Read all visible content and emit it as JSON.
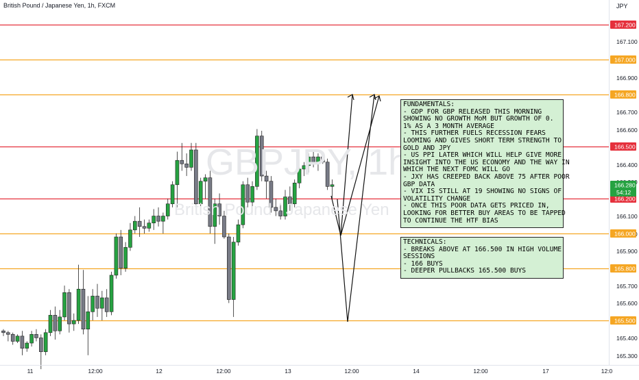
{
  "chart_data": {
    "type": "candlestick",
    "title": "British Pound / Japanese Yen, 1h, FXCM",
    "watermark": {
      "symbol": "GBPJPY, 1h",
      "name": "British Pound / Japanese Yen"
    },
    "y_unit": "JPY",
    "ylim": [
      165.26,
      167.33
    ],
    "y_ticks": [
      "167.100",
      "166.900",
      "166.700",
      "166.600",
      "166.400",
      "166.300",
      "166.100",
      "166.000",
      "165.900",
      "165.700",
      "165.600",
      "165.400",
      "165.300"
    ],
    "x_ticks": [
      "11",
      "12:00",
      "12",
      "12:00",
      "13",
      "12:00",
      "14",
      "12:00",
      "17",
      "12:0"
    ],
    "hlines": [
      {
        "value": 167.2,
        "label": "167.200",
        "color": "#e5303c"
      },
      {
        "value": 167.0,
        "label": "167.000",
        "color": "#f5a623"
      },
      {
        "value": 166.8,
        "label": "166.800",
        "color": "#f5a623"
      },
      {
        "value": 166.5,
        "label": "166.500",
        "color": "#e5303c"
      },
      {
        "value": 166.2,
        "label": "166.200",
        "color": "#e5303c"
      },
      {
        "value": 166.0,
        "label": "166.000",
        "color": "#f5a623"
      },
      {
        "value": 165.8,
        "label": "165.800",
        "color": "#f5a623"
      },
      {
        "value": 165.5,
        "label": "165.500",
        "color": "#f5a623"
      }
    ],
    "current_price": {
      "value": 166.28,
      "label": "166.280",
      "countdown": "54:12",
      "color": "#26a241"
    },
    "candles": [
      [
        165.44,
        165.45,
        165.41,
        165.43
      ],
      [
        165.43,
        165.44,
        165.38,
        165.42
      ],
      [
        165.42,
        165.43,
        165.36,
        165.38
      ],
      [
        165.38,
        165.42,
        165.37,
        165.41
      ],
      [
        165.41,
        165.44,
        165.3,
        165.34
      ],
      [
        165.34,
        165.38,
        165.32,
        165.37
      ],
      [
        165.37,
        165.44,
        165.35,
        165.42
      ],
      [
        165.42,
        165.45,
        165.38,
        165.4
      ],
      [
        165.4,
        165.42,
        165.22,
        165.32
      ],
      [
        165.32,
        165.45,
        165.3,
        165.43
      ],
      [
        165.43,
        165.56,
        165.41,
        165.53
      ],
      [
        165.53,
        165.58,
        165.39,
        165.44
      ],
      [
        165.44,
        165.56,
        165.42,
        165.52
      ],
      [
        165.52,
        165.7,
        165.5,
        165.66
      ],
      [
        165.66,
        165.68,
        165.43,
        165.48
      ],
      [
        165.48,
        165.54,
        165.44,
        165.5
      ],
      [
        165.5,
        165.82,
        165.48,
        165.68
      ],
      [
        165.68,
        165.79,
        165.42,
        165.45
      ],
      [
        165.45,
        165.64,
        165.3,
        165.55
      ],
      [
        165.55,
        165.68,
        165.5,
        165.64
      ],
      [
        165.64,
        165.71,
        165.52,
        165.57
      ],
      [
        165.57,
        165.67,
        165.5,
        165.63
      ],
      [
        165.63,
        165.68,
        165.52,
        165.55
      ],
      [
        165.55,
        165.78,
        165.53,
        165.76
      ],
      [
        165.76,
        166.0,
        165.74,
        165.98
      ],
      [
        165.98,
        166.02,
        165.76,
        165.8
      ],
      [
        165.8,
        165.95,
        165.78,
        165.92
      ],
      [
        165.92,
        166.06,
        165.9,
        166.02
      ],
      [
        166.02,
        166.1,
        166.0,
        166.07
      ],
      [
        166.07,
        166.15,
        165.98,
        166.04
      ],
      [
        166.04,
        166.08,
        166.0,
        166.03
      ],
      [
        166.03,
        166.08,
        166.01,
        166.06
      ],
      [
        166.06,
        166.14,
        166.02,
        166.1
      ],
      [
        166.1,
        166.15,
        166.04,
        166.07
      ],
      [
        166.07,
        166.12,
        166.0,
        166.1
      ],
      [
        166.1,
        166.2,
        166.08,
        166.17
      ],
      [
        166.17,
        166.3,
        166.15,
        166.28
      ],
      [
        166.28,
        166.47,
        166.15,
        166.42
      ],
      [
        166.42,
        166.52,
        166.36,
        166.4
      ],
      [
        166.4,
        166.46,
        166.33,
        166.38
      ],
      [
        166.38,
        166.52,
        166.36,
        166.48
      ],
      [
        166.48,
        166.52,
        166.15,
        166.17
      ],
      [
        166.17,
        166.32,
        166.12,
        166.3
      ],
      [
        166.3,
        166.34,
        166.2,
        166.32
      ],
      [
        166.32,
        166.36,
        166.0,
        166.04
      ],
      [
        166.04,
        166.2,
        165.94,
        166.17
      ],
      [
        166.17,
        166.23,
        166.05,
        166.1
      ],
      [
        166.1,
        166.13,
        165.97,
        165.98
      ],
      [
        165.98,
        166.0,
        165.6,
        165.62
      ],
      [
        165.62,
        165.98,
        165.52,
        165.95
      ],
      [
        165.95,
        166.08,
        165.93,
        166.05
      ],
      [
        166.05,
        166.3,
        166.03,
        166.28
      ],
      [
        166.28,
        166.32,
        166.15,
        166.18
      ],
      [
        166.18,
        166.3,
        166.12,
        166.27
      ],
      [
        166.27,
        166.6,
        166.25,
        166.56
      ],
      [
        166.56,
        166.59,
        166.3,
        166.33
      ],
      [
        166.33,
        166.36,
        166.2,
        166.3
      ],
      [
        166.3,
        166.33,
        166.12,
        166.15
      ],
      [
        166.15,
        166.2,
        166.1,
        166.13
      ],
      [
        166.13,
        166.17,
        166.08,
        166.1
      ],
      [
        166.1,
        166.25,
        166.08,
        166.21
      ],
      [
        166.21,
        166.27,
        166.13,
        166.17
      ],
      [
        166.17,
        166.31,
        166.15,
        166.29
      ],
      [
        166.29,
        166.4,
        166.26,
        166.37
      ],
      [
        166.37,
        166.41,
        166.33,
        166.39
      ],
      [
        166.39,
        166.46,
        166.35,
        166.44
      ],
      [
        166.44,
        166.47,
        166.38,
        166.4
      ],
      [
        166.4,
        166.46,
        166.36,
        166.44
      ],
      [
        166.44,
        166.47,
        166.4,
        166.41
      ],
      [
        166.41,
        166.43,
        166.25,
        166.27
      ],
      [
        166.27,
        166.31,
        166.2,
        166.28
      ]
    ],
    "annotations": {
      "fundamentals": "FUNDAMENTALS:\n- GDP FOR GBP RELEASED THIS MORNING\nSHOWING NO GROWTH MoM BUT GROWTH OF 0.\n1% AS A 3 MONTH AVERAGE\n- THIS FURTHER FUELS RECESSION FEARS\nLOOMING AND GIVES SHORT TERM STRENGTH TO\nGOLD AND JPY\n- US PPI LATER WHICH WILL HELP GIVE MORE\nINSIGHT INTO THE US ECONOMY AND THE WAY IN\nWHICH THE NEXT FOMC WILL GO\n- JXY HAS CREEPED BACK ABOVE 75 AFTER POOR\nGBP DATA\n- VIX IS STILL AT 19 SHOWING NO SIGNS OF\nVOLATILITY CHANGE\n- ONCE THIS POOR DATA GETS PRICED IN,\nLOOKING FOR BETTER BUY AREAS TO BE TAPPED\nTO CONTINUE THE HTF BIAS",
      "technicals": "TECHNICALS:\n- BREAKS ABOVE AT 166.500 IN HIGH VOLUME\nSESSIONS\n- 166 BUYS\n- DEEPER PULLBACKS 165.500 BUYS"
    },
    "colors": {
      "up": "#26a241",
      "down": "#787b86",
      "axis_text": "#131722",
      "annotation_bg": "#d4f0d4"
    }
  }
}
